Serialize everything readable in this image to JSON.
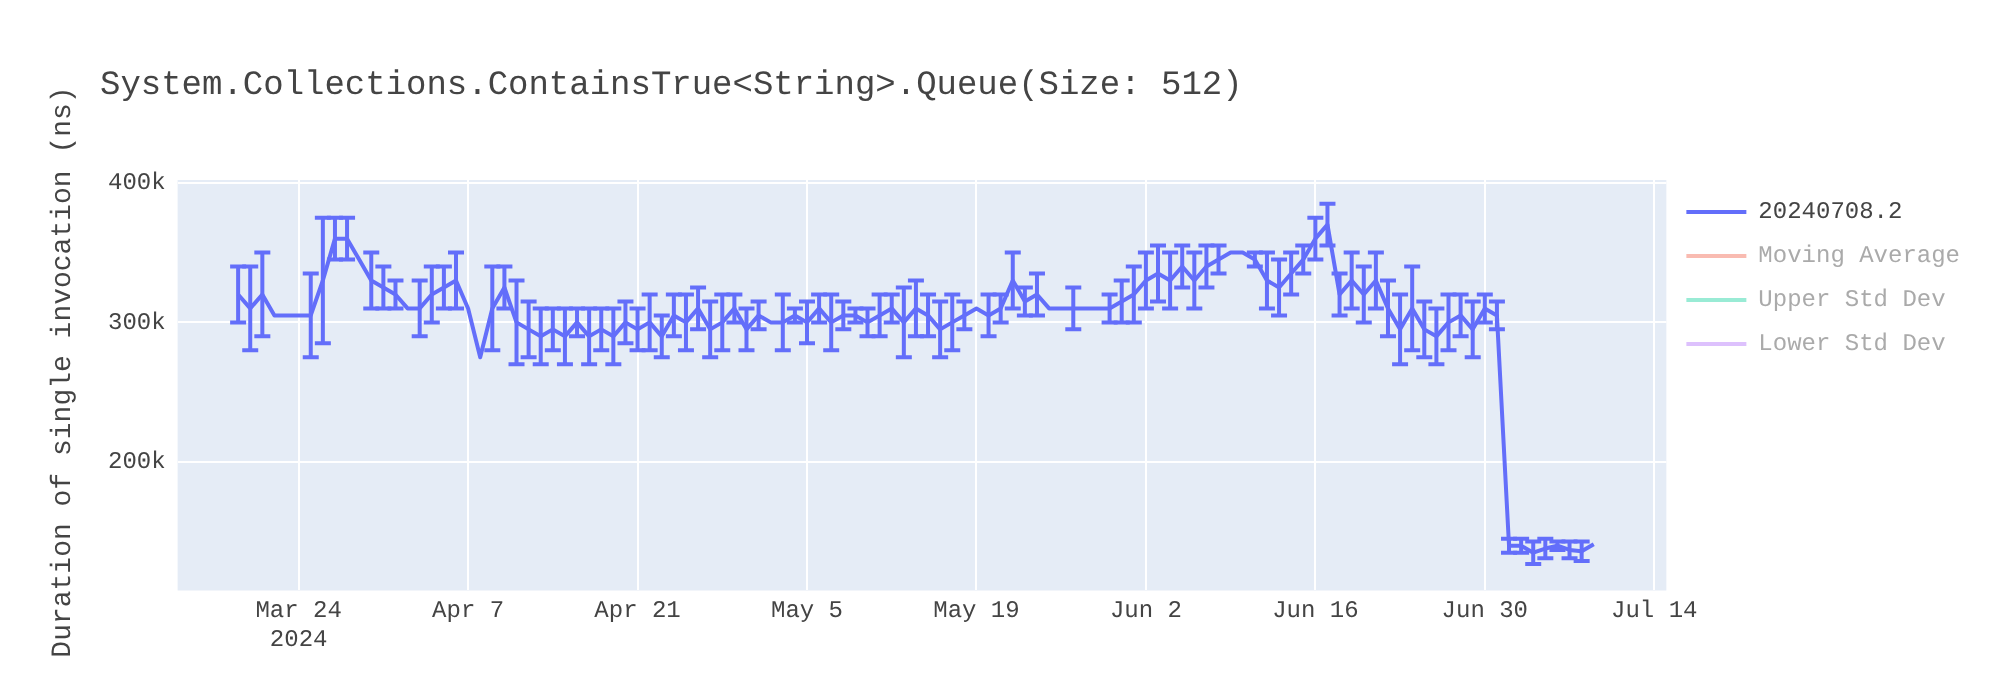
{
  "chart_data": {
    "type": "line",
    "title": "System.Collections.ContainsTrue<String>.Queue(Size: 512)",
    "ylabel": "Duration of single invocation (ns)",
    "x": [
      "2024-03-19",
      "2024-03-20",
      "2024-03-21",
      "2024-03-22",
      "2024-03-23",
      "2024-03-24",
      "2024-03-25",
      "2024-03-26",
      "2024-03-27",
      "2024-03-28",
      "2024-03-29",
      "2024-03-30",
      "2024-03-31",
      "2024-04-01",
      "2024-04-02",
      "2024-04-03",
      "2024-04-04",
      "2024-04-05",
      "2024-04-06",
      "2024-04-07",
      "2024-04-08",
      "2024-04-09",
      "2024-04-10",
      "2024-04-11",
      "2024-04-12",
      "2024-04-13",
      "2024-04-14",
      "2024-04-15",
      "2024-04-16",
      "2024-04-17",
      "2024-04-18",
      "2024-04-19",
      "2024-04-20",
      "2024-04-21",
      "2024-04-22",
      "2024-04-23",
      "2024-04-24",
      "2024-04-25",
      "2024-04-26",
      "2024-04-27",
      "2024-04-28",
      "2024-04-29",
      "2024-04-30",
      "2024-05-01",
      "2024-05-02",
      "2024-05-03",
      "2024-05-04",
      "2024-05-05",
      "2024-05-06",
      "2024-05-07",
      "2024-05-08",
      "2024-05-09",
      "2024-05-10",
      "2024-05-11",
      "2024-05-12",
      "2024-05-13",
      "2024-05-14",
      "2024-05-15",
      "2024-05-16",
      "2024-05-17",
      "2024-05-18",
      "2024-05-19",
      "2024-05-20",
      "2024-05-21",
      "2024-05-22",
      "2024-05-23",
      "2024-05-24",
      "2024-05-25",
      "2024-05-26",
      "2024-05-27",
      "2024-05-28",
      "2024-05-29",
      "2024-05-30",
      "2024-05-31",
      "2024-06-01",
      "2024-06-02",
      "2024-06-03",
      "2024-06-04",
      "2024-06-05",
      "2024-06-06",
      "2024-06-07",
      "2024-06-08",
      "2024-06-09",
      "2024-06-10",
      "2024-06-11",
      "2024-06-12",
      "2024-06-13",
      "2024-06-14",
      "2024-06-15",
      "2024-06-16",
      "2024-06-17",
      "2024-06-18",
      "2024-06-19",
      "2024-06-20",
      "2024-06-21",
      "2024-06-22",
      "2024-06-23",
      "2024-06-24",
      "2024-06-25",
      "2024-06-26",
      "2024-06-27",
      "2024-06-28",
      "2024-06-29",
      "2024-06-30",
      "2024-07-01",
      "2024-07-02",
      "2024-07-03",
      "2024-07-04",
      "2024-07-05",
      "2024-07-06",
      "2024-07-07",
      "2024-07-08",
      "2024-07-09"
    ],
    "series": [
      {
        "name": "20240708.2",
        "color": "#636efa",
        "values": [
          320000,
          310000,
          320000,
          305000,
          305000,
          305000,
          305000,
          330000,
          360000,
          360000,
          345000,
          330000,
          325000,
          320000,
          310000,
          310000,
          320000,
          325000,
          330000,
          310000,
          275000,
          310000,
          325000,
          300000,
          295000,
          290000,
          295000,
          290000,
          300000,
          290000,
          295000,
          290000,
          300000,
          295000,
          300000,
          290000,
          305000,
          300000,
          310000,
          295000,
          300000,
          310000,
          295000,
          305000,
          300000,
          300000,
          305000,
          300000,
          310000,
          300000,
          305000,
          305000,
          300000,
          305000,
          310000,
          300000,
          310000,
          305000,
          295000,
          300000,
          305000,
          310000,
          305000,
          310000,
          330000,
          315000,
          320000,
          310000,
          310000,
          310000,
          310000,
          310000,
          310000,
          315000,
          320000,
          330000,
          335000,
          330000,
          340000,
          330000,
          340000,
          345000,
          350000,
          350000,
          345000,
          330000,
          325000,
          335000,
          345000,
          360000,
          370000,
          320000,
          330000,
          320000,
          330000,
          310000,
          295000,
          310000,
          295000,
          290000,
          300000,
          305000,
          295000,
          310000,
          305000,
          140000,
          140000,
          135000,
          138000,
          140000,
          137000,
          136000,
          141000
        ],
        "errors": [
          20000,
          30000,
          30000,
          null,
          null,
          null,
          30000,
          45000,
          15000,
          15000,
          null,
          20000,
          15000,
          10000,
          null,
          20000,
          20000,
          15000,
          20000,
          null,
          null,
          30000,
          15000,
          30000,
          20000,
          20000,
          15000,
          20000,
          10000,
          20000,
          15000,
          20000,
          15000,
          15000,
          20000,
          15000,
          15000,
          20000,
          15000,
          20000,
          20000,
          10000,
          15000,
          10000,
          null,
          20000,
          5000,
          15000,
          10000,
          20000,
          10000,
          5000,
          10000,
          15000,
          10000,
          25000,
          20000,
          15000,
          20000,
          20000,
          10000,
          null,
          15000,
          10000,
          20000,
          10000,
          15000,
          null,
          null,
          15000,
          null,
          null,
          10000,
          15000,
          20000,
          20000,
          20000,
          20000,
          15000,
          20000,
          15000,
          10000,
          null,
          null,
          5000,
          20000,
          20000,
          15000,
          10000,
          15000,
          15000,
          15000,
          20000,
          20000,
          20000,
          20000,
          25000,
          30000,
          20000,
          20000,
          20000,
          15000,
          20000,
          10000,
          10000,
          5000,
          5000,
          8000,
          7000,
          3000,
          6000,
          7000,
          null
        ]
      },
      {
        "name": "Moving Average",
        "color": "#ef553b",
        "values": [
          null,
          null,
          null,
          null,
          null,
          null,
          null,
          null,
          null,
          null,
          null,
          null,
          null,
          null,
          null,
          null,
          null,
          null,
          null,
          null,
          null,
          null,
          null,
          null,
          null,
          null,
          null,
          null,
          null,
          null,
          null,
          null,
          null,
          null,
          null,
          null,
          null,
          null,
          null,
          null,
          null,
          null,
          null,
          null,
          null,
          null,
          null,
          null,
          null,
          null,
          null,
          null,
          null,
          null,
          null,
          null,
          null,
          null,
          null,
          null,
          null,
          null,
          null,
          null,
          null,
          null,
          null,
          null,
          null,
          null,
          null,
          null,
          null,
          null,
          null,
          null,
          null,
          null,
          null,
          null,
          null,
          null,
          null,
          null,
          null,
          null,
          null,
          null,
          null,
          null,
          null,
          null,
          null,
          null,
          null,
          null,
          null,
          null,
          null,
          null,
          null,
          null,
          null,
          null,
          null,
          null,
          null,
          null,
          null,
          null,
          null,
          null,
          null
        ]
      },
      {
        "name": "Upper Std Dev",
        "color": "#00cc96",
        "values": [
          null,
          null,
          null,
          null,
          null,
          null,
          null,
          null,
          null,
          null,
          null,
          null,
          null,
          null,
          null,
          null,
          null,
          null,
          null,
          null,
          null,
          null,
          null,
          null,
          null,
          null,
          null,
          null,
          null,
          null,
          null,
          null,
          null,
          null,
          null,
          null,
          null,
          null,
          null,
          null,
          null,
          null,
          null,
          null,
          null,
          null,
          null,
          null,
          null,
          null,
          null,
          null,
          null,
          null,
          null,
          null,
          null,
          null,
          null,
          null,
          null,
          null,
          null,
          null,
          null,
          null,
          null,
          null,
          null,
          null,
          null,
          null,
          null,
          null,
          null,
          null,
          null,
          null,
          null,
          null,
          null,
          null,
          null,
          null,
          null,
          null,
          null,
          null,
          null,
          null,
          null,
          null,
          null,
          null,
          null,
          null,
          null,
          null,
          null,
          null,
          null,
          null,
          null,
          null,
          null,
          null,
          null,
          null,
          null,
          null,
          null,
          null,
          null
        ]
      },
      {
        "name": "Lower Std Dev",
        "color": "#ab63fa",
        "values": [
          null,
          null,
          null,
          null,
          null,
          null,
          null,
          null,
          null,
          null,
          null,
          null,
          null,
          null,
          null,
          null,
          null,
          null,
          null,
          null,
          null,
          null,
          null,
          null,
          null,
          null,
          null,
          null,
          null,
          null,
          null,
          null,
          null,
          null,
          null,
          null,
          null,
          null,
          null,
          null,
          null,
          null,
          null,
          null,
          null,
          null,
          null,
          null,
          null,
          null,
          null,
          null,
          null,
          null,
          null,
          null,
          null,
          null,
          null,
          null,
          null,
          null,
          null,
          null,
          null,
          null,
          null,
          null,
          null,
          null,
          null,
          null,
          null,
          null,
          null,
          null,
          null,
          null,
          null,
          null,
          null,
          null,
          null,
          null,
          null,
          null,
          null,
          null,
          null,
          null,
          null,
          null,
          null,
          null,
          null,
          null,
          null,
          null,
          null,
          null,
          null,
          null,
          null,
          null,
          null,
          null,
          null,
          null,
          null,
          null,
          null,
          null,
          null
        ]
      }
    ],
    "xlim": [
      "2024-03-14",
      "2024-07-15"
    ],
    "xticks": [
      {
        "value": "2024-03-24",
        "label": "Mar 24\n2024"
      },
      {
        "value": "2024-04-07",
        "label": "Apr 7"
      },
      {
        "value": "2024-04-21",
        "label": "Apr 21"
      },
      {
        "value": "2024-05-05",
        "label": "May 5"
      },
      {
        "value": "2024-05-19",
        "label": "May 19"
      },
      {
        "value": "2024-06-02",
        "label": "Jun 2"
      },
      {
        "value": "2024-06-16",
        "label": "Jun 16"
      },
      {
        "value": "2024-06-30",
        "label": "Jun 30"
      },
      {
        "value": "2024-07-14",
        "label": "Jul 14"
      }
    ],
    "ylim": [
      108000,
      402000
    ],
    "yticks": [
      {
        "value": 200000,
        "label": "200k"
      },
      {
        "value": 300000,
        "label": "300k"
      },
      {
        "value": 400000,
        "label": "400k"
      }
    ],
    "grid": true,
    "legend": "top right",
    "marker": "none",
    "line_style": "solid"
  }
}
